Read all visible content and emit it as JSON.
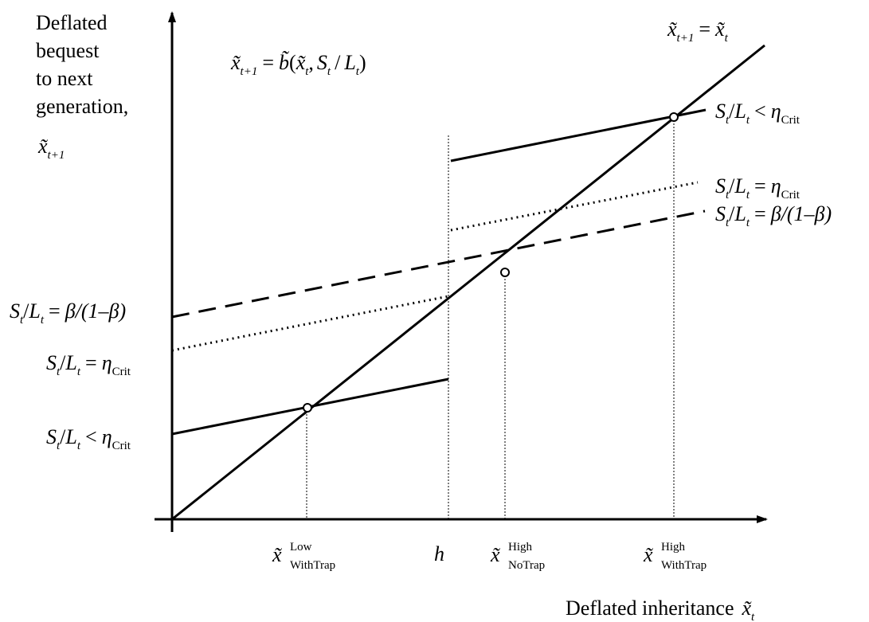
{
  "yaxis_label": {
    "line1": "Deflated",
    "line2": "bequest",
    "line3": "to next",
    "line4": "generation,",
    "var": "x̃",
    "var_sub": "t+1"
  },
  "xaxis_label": {
    "text": "Deflated inheritance",
    "var": "x̃",
    "var_sub": "t"
  },
  "function_label": {
    "lhs_var": "x̃",
    "lhs_sub": "t+1",
    "eq": "=",
    "fn": "b̃",
    "open": "(",
    "arg1_var": "x̃",
    "arg1_sub": "t",
    "comma": ",",
    "arg2_S": "S",
    "arg2_S_sub": "t",
    "slash": "/",
    "arg2_L": "L",
    "arg2_L_sub": "t",
    "close": ")"
  },
  "diagonal_label": {
    "lhs_var": "x̃",
    "lhs_sub": "t+1",
    "eq": "=",
    "rhs_var": "x̃",
    "rhs_sub": "t"
  },
  "regime_labels": {
    "S": "S",
    "L": "L",
    "t": "t",
    "slash": "/",
    "lt": "<",
    "eq": "=",
    "eta": "η",
    "crit": "Crit",
    "beta_expr": "β/(1–β)"
  },
  "x_ticks": {
    "low_var": "x̃",
    "low_sup": "Low",
    "low_sub": "WithTrap",
    "h": "h",
    "nt_var": "x̃",
    "nt_sup": "High",
    "nt_sub": "NoTrap",
    "wt_var": "x̃",
    "wt_sup": "High",
    "wt_sub": "WithTrap"
  }
}
